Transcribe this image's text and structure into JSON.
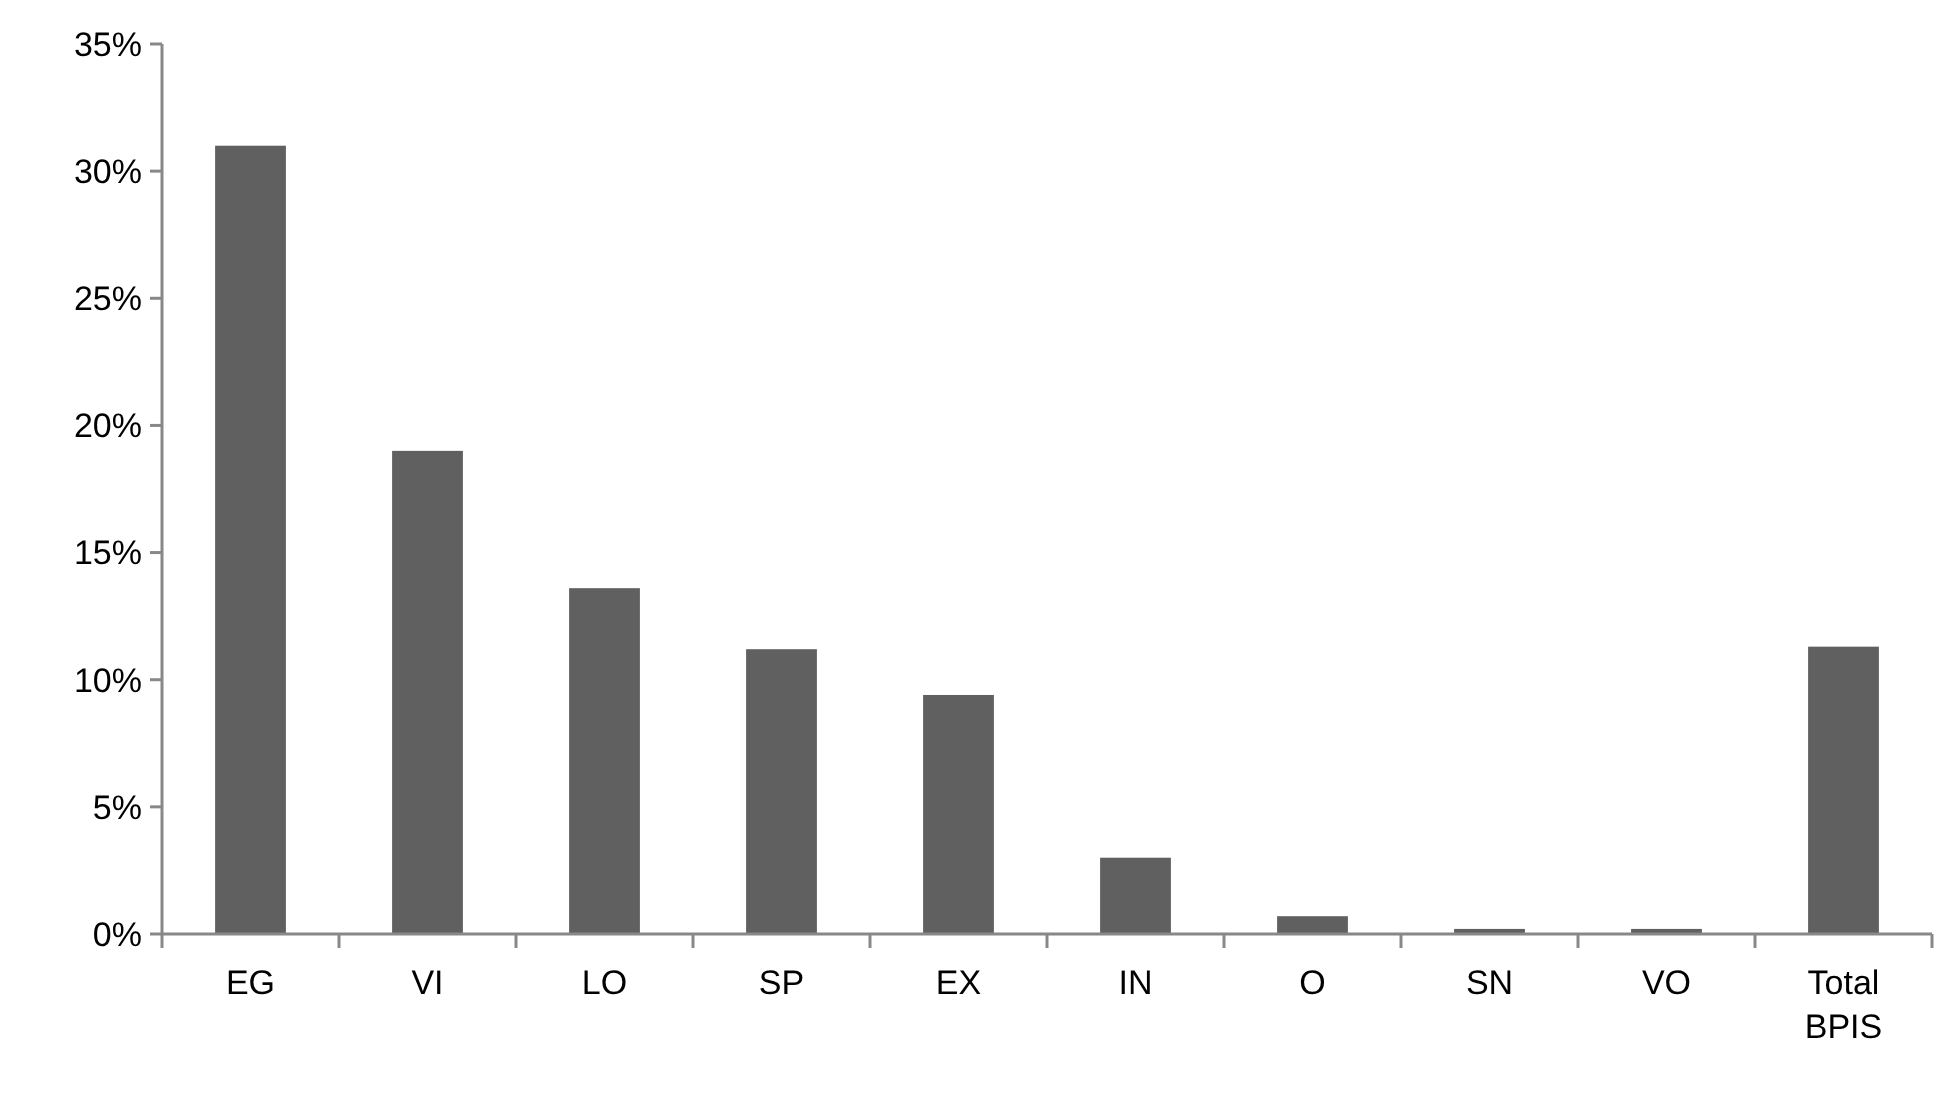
{
  "chart_data": {
    "type": "bar",
    "categories": [
      "EG",
      "VI",
      "LO",
      "SP",
      "EX",
      "IN",
      "O",
      "SN",
      "VO",
      "Total BPIS"
    ],
    "values": [
      31.0,
      19.0,
      13.6,
      11.2,
      9.4,
      3.0,
      0.7,
      0.2,
      0.2,
      11.3
    ],
    "color": "#606060",
    "ylim": [
      0,
      35
    ],
    "yticks": [
      {
        "value": 0,
        "label": "0%"
      },
      {
        "value": 5,
        "label": "5%"
      },
      {
        "value": 10,
        "label": "10%"
      },
      {
        "value": 15,
        "label": "15%"
      },
      {
        "value": 20,
        "label": "20%"
      },
      {
        "value": 25,
        "label": "25%"
      },
      {
        "value": 30,
        "label": "30%"
      },
      {
        "value": 35,
        "label": "35%"
      }
    ],
    "grid": false
  }
}
